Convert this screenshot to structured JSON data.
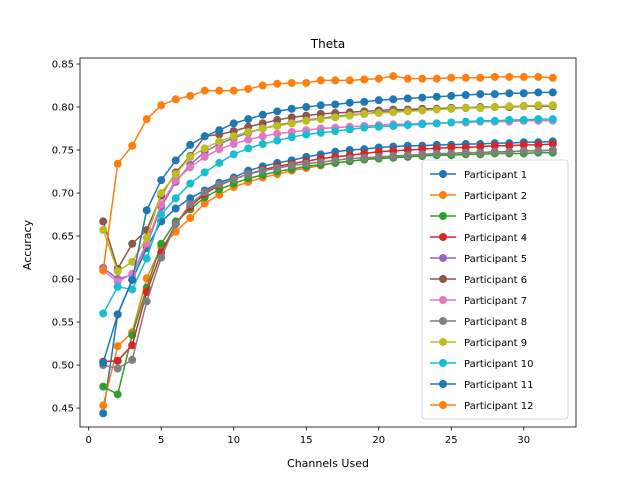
{
  "chart_data": {
    "type": "line",
    "title": "Theta",
    "xlabel": "Channels Used",
    "ylabel": "Accuracy",
    "xlim": [
      -0.6,
      33.6
    ],
    "ylim": [
      0.428,
      0.857
    ],
    "xticks": [
      0,
      5,
      10,
      15,
      20,
      25,
      30
    ],
    "yticks": [
      0.45,
      0.5,
      0.55,
      0.6,
      0.65,
      0.7,
      0.75,
      0.8,
      0.85
    ],
    "x": [
      1,
      2,
      3,
      4,
      5,
      6,
      7,
      8,
      9,
      10,
      11,
      12,
      13,
      14,
      15,
      16,
      17,
      18,
      19,
      20,
      21,
      22,
      23,
      24,
      25,
      26,
      27,
      28,
      29,
      30,
      31,
      32
    ],
    "legend_position": "lower-right",
    "grid": false,
    "series": [
      {
        "name": "Participant 1",
        "color": "#1f77b4",
        "values": [
          0.444,
          0.559,
          0.599,
          0.636,
          0.667,
          0.682,
          0.694,
          0.703,
          0.712,
          0.718,
          0.726,
          0.731,
          0.735,
          0.738,
          0.742,
          0.745,
          0.748,
          0.75,
          0.751,
          0.753,
          0.754,
          0.755,
          0.755,
          0.756,
          0.756,
          0.757,
          0.757,
          0.758,
          0.758,
          0.759,
          0.759,
          0.76
        ]
      },
      {
        "name": "Participant 2",
        "color": "#ff7f0e",
        "values": [
          0.453,
          0.522,
          0.538,
          0.601,
          0.637,
          0.655,
          0.671,
          0.688,
          0.698,
          0.707,
          0.713,
          0.718,
          0.722,
          0.726,
          0.729,
          0.732,
          0.735,
          0.737,
          0.739,
          0.741,
          0.742,
          0.743,
          0.744,
          0.745,
          0.746,
          0.747,
          0.747,
          0.748,
          0.748,
          0.749,
          0.749,
          0.75
        ]
      },
      {
        "name": "Participant 3",
        "color": "#2ca02c",
        "values": [
          0.475,
          0.466,
          0.535,
          0.59,
          0.641,
          0.667,
          0.681,
          0.695,
          0.704,
          0.711,
          0.717,
          0.721,
          0.725,
          0.728,
          0.731,
          0.733,
          0.735,
          0.737,
          0.739,
          0.74,
          0.741,
          0.742,
          0.743,
          0.744,
          0.744,
          0.745,
          0.745,
          0.746,
          0.746,
          0.746,
          0.747,
          0.747
        ]
      },
      {
        "name": "Participant 4",
        "color": "#d62728",
        "values": [
          0.504,
          0.505,
          0.523,
          0.585,
          0.631,
          0.664,
          0.684,
          0.699,
          0.709,
          0.716,
          0.722,
          0.727,
          0.731,
          0.734,
          0.737,
          0.74,
          0.742,
          0.744,
          0.746,
          0.748,
          0.749,
          0.75,
          0.751,
          0.752,
          0.753,
          0.753,
          0.754,
          0.755,
          0.755,
          0.756,
          0.756,
          0.757
        ]
      },
      {
        "name": "Participant 5",
        "color": "#9467bd",
        "values": [
          0.613,
          0.6,
          0.605,
          0.64,
          0.684,
          0.713,
          0.733,
          0.748,
          0.757,
          0.764,
          0.77,
          0.775,
          0.779,
          0.782,
          0.785,
          0.787,
          0.789,
          0.791,
          0.792,
          0.794,
          0.795,
          0.796,
          0.797,
          0.798,
          0.798,
          0.799,
          0.799,
          0.8,
          0.8,
          0.801,
          0.801,
          0.802
        ]
      },
      {
        "name": "Participant 6",
        "color": "#8c564b",
        "values": [
          0.667,
          0.612,
          0.641,
          0.657,
          0.697,
          0.724,
          0.743,
          0.766,
          0.768,
          0.772,
          0.777,
          0.781,
          0.785,
          0.788,
          0.79,
          0.792,
          0.793,
          0.794,
          0.795,
          0.796,
          0.797,
          0.797,
          0.798,
          0.798,
          0.799,
          0.799,
          0.8,
          0.8,
          0.8,
          0.801,
          0.801,
          0.801
        ]
      },
      {
        "name": "Participant 7",
        "color": "#e377c2",
        "values": [
          0.61,
          0.597,
          0.606,
          0.642,
          0.687,
          0.715,
          0.73,
          0.742,
          0.751,
          0.757,
          0.762,
          0.766,
          0.769,
          0.771,
          0.773,
          0.775,
          0.776,
          0.777,
          0.778,
          0.779,
          0.78,
          0.78,
          0.781,
          0.781,
          0.782,
          0.782,
          0.783,
          0.783,
          0.783,
          0.784,
          0.784,
          0.784
        ]
      },
      {
        "name": "Participant 8",
        "color": "#7f7f7f",
        "values": [
          0.5,
          0.496,
          0.506,
          0.574,
          0.625,
          0.664,
          0.687,
          0.701,
          0.71,
          0.716,
          0.722,
          0.726,
          0.729,
          0.732,
          0.734,
          0.736,
          0.738,
          0.74,
          0.741,
          0.742,
          0.743,
          0.744,
          0.745,
          0.746,
          0.746,
          0.747,
          0.747,
          0.748,
          0.748,
          0.749,
          0.749,
          0.75
        ]
      },
      {
        "name": "Participant 9",
        "color": "#bcbd22",
        "values": [
          0.657,
          0.609,
          0.62,
          0.648,
          0.7,
          0.722,
          0.742,
          0.752,
          0.76,
          0.766,
          0.771,
          0.775,
          0.778,
          0.781,
          0.784,
          0.786,
          0.788,
          0.79,
          0.792,
          0.793,
          0.794,
          0.795,
          0.796,
          0.797,
          0.798,
          0.799,
          0.799,
          0.8,
          0.801,
          0.801,
          0.802,
          0.802
        ]
      },
      {
        "name": "Participant 10",
        "color": "#17becf",
        "values": [
          0.56,
          0.591,
          0.588,
          0.624,
          0.675,
          0.694,
          0.711,
          0.724,
          0.735,
          0.745,
          0.752,
          0.757,
          0.761,
          0.765,
          0.768,
          0.77,
          0.772,
          0.774,
          0.776,
          0.777,
          0.778,
          0.779,
          0.78,
          0.781,
          0.782,
          0.783,
          0.784,
          0.784,
          0.785,
          0.785,
          0.786,
          0.786
        ]
      },
      {
        "name": "Participant 11",
        "color": "#1f77b4",
        "values": [
          0.503,
          0.559,
          0.599,
          0.68,
          0.715,
          0.738,
          0.756,
          0.766,
          0.773,
          0.781,
          0.786,
          0.791,
          0.795,
          0.798,
          0.8,
          0.802,
          0.803,
          0.805,
          0.806,
          0.808,
          0.809,
          0.81,
          0.811,
          0.812,
          0.813,
          0.814,
          0.815,
          0.815,
          0.816,
          0.816,
          0.817,
          0.817
        ]
      },
      {
        "name": "Participant 12",
        "color": "#ff7f0e",
        "values": [
          0.61,
          0.734,
          0.755,
          0.786,
          0.802,
          0.809,
          0.813,
          0.819,
          0.819,
          0.819,
          0.821,
          0.825,
          0.827,
          0.828,
          0.828,
          0.831,
          0.831,
          0.831,
          0.832,
          0.833,
          0.836,
          0.833,
          0.833,
          0.833,
          0.834,
          0.834,
          0.834,
          0.835,
          0.835,
          0.835,
          0.835,
          0.834
        ]
      }
    ]
  }
}
